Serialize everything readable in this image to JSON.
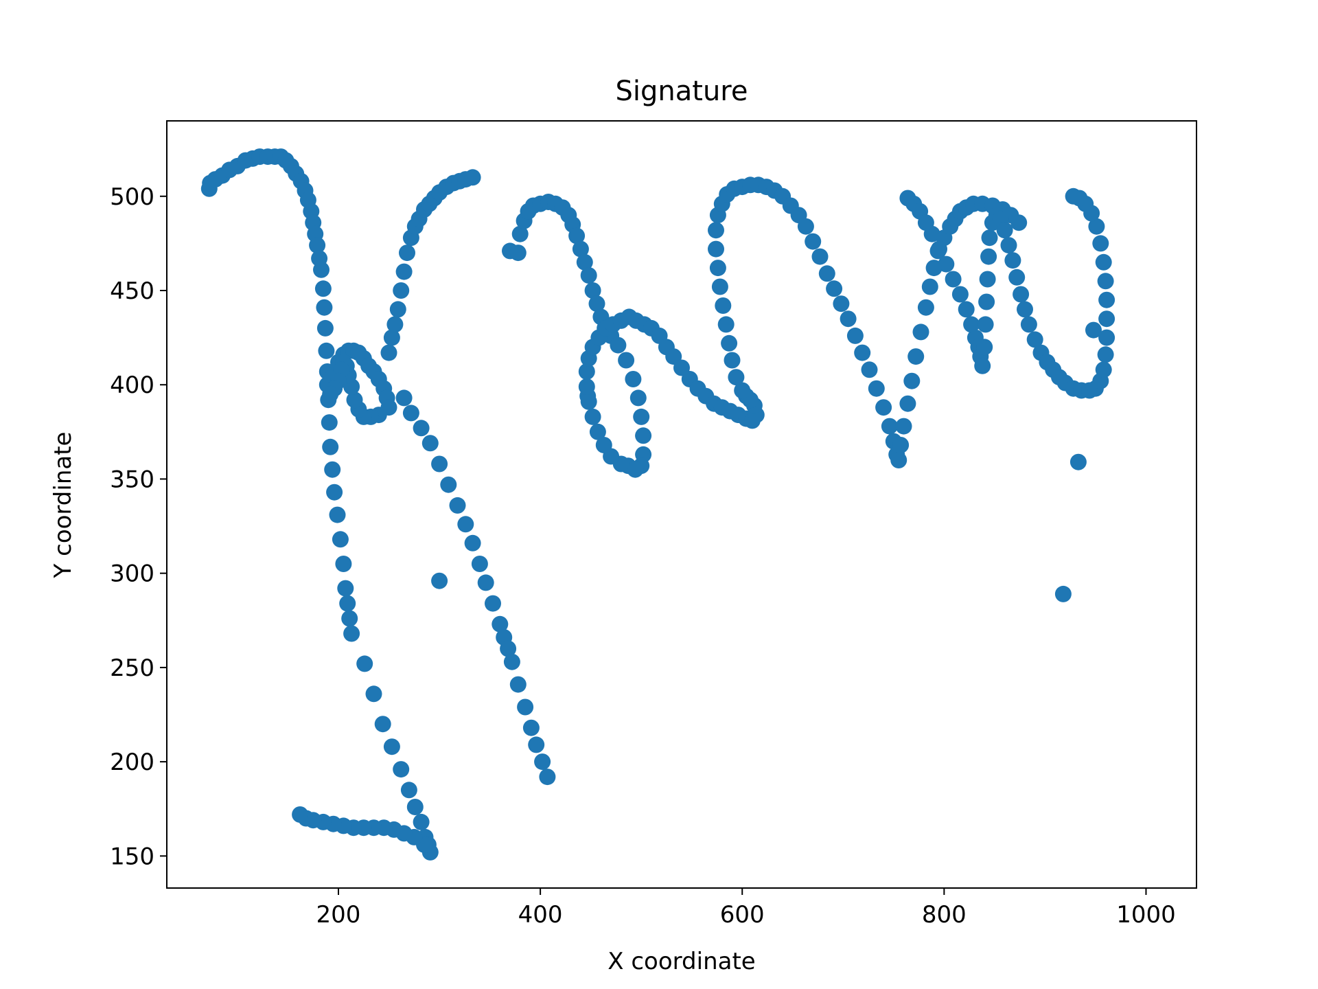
{
  "chart_data": {
    "type": "scatter",
    "title": "Signature",
    "xlabel": "X coordinate",
    "ylabel": "Y coordinate",
    "xlim": [
      30,
      1050
    ],
    "ylim": [
      133,
      540
    ],
    "xticks": [
      200,
      400,
      600,
      800,
      1000
    ],
    "yticks": [
      150,
      200,
      250,
      300,
      350,
      400,
      450,
      500
    ],
    "grid": false,
    "color": "#1f77b4",
    "series": [
      {
        "points": [
          [
            72,
            504
          ],
          [
            73,
            507
          ],
          [
            78,
            509
          ],
          [
            85,
            511
          ],
          [
            92,
            514
          ],
          [
            100,
            516
          ],
          [
            108,
            519
          ],
          [
            115,
            520
          ],
          [
            122,
            521
          ],
          [
            130,
            521
          ],
          [
            137,
            521
          ],
          [
            143,
            521
          ],
          [
            148,
            519
          ],
          [
            153,
            516
          ],
          [
            158,
            512
          ],
          [
            163,
            508
          ],
          [
            167,
            503
          ],
          [
            170,
            498
          ],
          [
            173,
            492
          ],
          [
            175,
            486
          ],
          [
            177,
            480
          ],
          [
            179,
            474
          ],
          [
            181,
            467
          ],
          [
            183,
            461
          ],
          [
            185,
            451
          ],
          [
            186,
            441
          ],
          [
            187,
            430
          ],
          [
            188,
            418
          ],
          [
            189,
            407
          ],
          [
            189,
            400
          ],
          [
            190,
            392
          ],
          [
            191,
            380
          ],
          [
            192,
            367
          ],
          [
            194,
            355
          ],
          [
            196,
            343
          ],
          [
            199,
            331
          ],
          [
            202,
            318
          ],
          [
            205,
            305
          ],
          [
            207,
            292
          ],
          [
            209,
            284
          ],
          [
            211,
            276
          ],
          [
            213,
            268
          ],
          [
            226,
            252
          ],
          [
            235,
            236
          ],
          [
            244,
            220
          ],
          [
            253,
            208
          ],
          [
            262,
            196
          ],
          [
            270,
            185
          ],
          [
            276,
            176
          ],
          [
            282,
            168
          ],
          [
            286,
            160
          ],
          [
            289,
            156
          ],
          [
            291,
            152
          ],
          [
            285,
            156
          ],
          [
            275,
            160
          ],
          [
            265,
            162
          ],
          [
            255,
            164
          ],
          [
            245,
            165
          ],
          [
            235,
            165
          ],
          [
            225,
            165
          ],
          [
            215,
            165
          ],
          [
            205,
            166
          ],
          [
            195,
            167
          ],
          [
            185,
            168
          ],
          [
            175,
            169
          ],
          [
            168,
            170
          ],
          [
            162,
            172
          ]
        ]
      },
      {
        "points": [
          [
            195,
            405
          ],
          [
            200,
            412
          ],
          [
            205,
            416
          ],
          [
            210,
            418
          ],
          [
            215,
            418
          ],
          [
            220,
            417
          ],
          [
            225,
            414
          ],
          [
            230,
            410
          ],
          [
            235,
            407
          ],
          [
            240,
            403
          ],
          [
            245,
            398
          ],
          [
            248,
            393
          ],
          [
            250,
            388
          ],
          [
            240,
            384
          ],
          [
            232,
            383
          ],
          [
            225,
            383
          ],
          [
            220,
            387
          ],
          [
            216,
            392
          ],
          [
            213,
            399
          ],
          [
            210,
            405
          ],
          [
            208,
            410
          ],
          [
            205,
            412
          ],
          [
            203,
            408
          ],
          [
            200,
            402
          ],
          [
            196,
            398
          ],
          [
            192,
            395
          ]
        ]
      },
      {
        "points": [
          [
            250,
            417
          ],
          [
            253,
            425
          ],
          [
            256,
            432
          ],
          [
            259,
            440
          ],
          [
            262,
            450
          ],
          [
            265,
            460
          ],
          [
            268,
            470
          ],
          [
            272,
            478
          ],
          [
            276,
            484
          ],
          [
            280,
            488
          ],
          [
            285,
            493
          ],
          [
            290,
            496
          ],
          [
            295,
            499
          ],
          [
            300,
            502
          ],
          [
            307,
            505
          ],
          [
            314,
            507
          ],
          [
            320,
            508
          ],
          [
            326,
            509
          ],
          [
            333,
            510
          ]
        ]
      },
      {
        "points": [
          [
            265,
            393
          ],
          [
            272,
            385
          ],
          [
            282,
            377
          ],
          [
            291,
            369
          ],
          [
            300,
            358
          ],
          [
            309,
            347
          ],
          [
            318,
            336
          ],
          [
            326,
            326
          ],
          [
            333,
            316
          ],
          [
            340,
            305
          ],
          [
            346,
            295
          ],
          [
            353,
            284
          ],
          [
            360,
            273
          ],
          [
            364,
            266
          ],
          [
            368,
            260
          ],
          [
            372,
            253
          ],
          [
            378,
            241
          ],
          [
            385,
            229
          ],
          [
            391,
            218
          ],
          [
            396,
            209
          ],
          [
            402,
            200
          ],
          [
            407,
            192
          ]
        ]
      },
      {
        "points": [
          [
            370,
            471
          ],
          [
            300,
            296
          ],
          [
            447,
            394
          ],
          [
            933,
            359
          ],
          [
            918,
            289
          ],
          [
            948,
            429
          ]
        ]
      },
      {
        "points": [
          [
            378,
            470
          ],
          [
            380,
            480
          ],
          [
            384,
            487
          ],
          [
            388,
            492
          ],
          [
            393,
            495
          ],
          [
            400,
            496
          ],
          [
            408,
            497
          ],
          [
            415,
            496
          ],
          [
            422,
            494
          ],
          [
            428,
            490
          ],
          [
            432,
            485
          ],
          [
            436,
            479
          ],
          [
            440,
            472
          ],
          [
            444,
            465
          ],
          [
            448,
            458
          ],
          [
            452,
            450
          ],
          [
            456,
            443
          ],
          [
            460,
            436
          ],
          [
            464,
            430
          ],
          [
            470,
            426
          ],
          [
            477,
            421
          ],
          [
            485,
            413
          ],
          [
            492,
            403
          ],
          [
            497,
            393
          ],
          [
            500,
            383
          ],
          [
            502,
            373
          ],
          [
            502,
            363
          ],
          [
            500,
            357
          ],
          [
            494,
            355
          ],
          [
            487,
            357
          ],
          [
            480,
            358
          ],
          [
            470,
            362
          ],
          [
            463,
            368
          ],
          [
            457,
            375
          ],
          [
            452,
            383
          ],
          [
            448,
            391
          ],
          [
            446,
            399
          ],
          [
            446,
            407
          ],
          [
            448,
            414
          ],
          [
            452,
            420
          ],
          [
            458,
            425
          ],
          [
            465,
            430
          ],
          [
            472,
            432
          ],
          [
            480,
            434
          ],
          [
            488,
            436
          ],
          [
            495,
            434
          ],
          [
            503,
            432
          ],
          [
            510,
            430
          ],
          [
            518,
            426
          ],
          [
            525,
            420
          ],
          [
            532,
            415
          ],
          [
            540,
            409
          ],
          [
            548,
            403
          ],
          [
            556,
            398
          ],
          [
            564,
            394
          ],
          [
            572,
            390
          ],
          [
            580,
            388
          ],
          [
            588,
            386
          ],
          [
            596,
            384
          ],
          [
            604,
            382
          ],
          [
            610,
            381
          ],
          [
            614,
            384
          ],
          [
            612,
            389
          ],
          [
            608,
            392
          ],
          [
            604,
            394
          ],
          [
            600,
            397
          ],
          [
            594,
            404
          ],
          [
            590,
            413
          ],
          [
            587,
            422
          ],
          [
            584,
            432
          ],
          [
            581,
            442
          ],
          [
            578,
            452
          ],
          [
            576,
            462
          ],
          [
            574,
            472
          ],
          [
            574,
            482
          ],
          [
            576,
            490
          ],
          [
            580,
            496
          ],
          [
            585,
            501
          ],
          [
            592,
            504
          ],
          [
            600,
            505
          ],
          [
            608,
            506
          ],
          [
            616,
            506
          ],
          [
            624,
            505
          ],
          [
            632,
            503
          ],
          [
            640,
            500
          ],
          [
            648,
            495
          ],
          [
            656,
            490
          ],
          [
            663,
            484
          ],
          [
            670,
            476
          ],
          [
            677,
            468
          ],
          [
            684,
            459
          ],
          [
            691,
            451
          ],
          [
            698,
            443
          ],
          [
            705,
            435
          ],
          [
            712,
            426
          ],
          [
            719,
            417
          ],
          [
            726,
            408
          ],
          [
            733,
            398
          ],
          [
            740,
            388
          ],
          [
            746,
            378
          ],
          [
            750,
            370
          ],
          [
            753,
            363
          ],
          [
            755,
            360
          ],
          [
            757,
            368
          ],
          [
            760,
            378
          ],
          [
            764,
            390
          ],
          [
            768,
            402
          ],
          [
            772,
            415
          ],
          [
            777,
            428
          ],
          [
            782,
            441
          ],
          [
            786,
            452
          ],
          [
            790,
            462
          ],
          [
            794,
            471
          ],
          [
            800,
            478
          ],
          [
            806,
            484
          ],
          [
            811,
            488
          ],
          [
            816,
            492
          ],
          [
            822,
            494
          ],
          [
            829,
            496
          ],
          [
            838,
            496
          ],
          [
            848,
            495
          ],
          [
            858,
            493
          ],
          [
            866,
            490
          ],
          [
            874,
            486
          ]
        ]
      },
      {
        "points": [
          [
            764,
            499
          ],
          [
            770,
            496
          ],
          [
            776,
            492
          ],
          [
            782,
            486
          ],
          [
            788,
            480
          ],
          [
            795,
            472
          ],
          [
            802,
            464
          ],
          [
            809,
            456
          ],
          [
            816,
            448
          ],
          [
            822,
            440
          ],
          [
            827,
            432
          ],
          [
            831,
            425
          ],
          [
            834,
            420
          ],
          [
            836,
            415
          ],
          [
            838,
            410
          ],
          [
            840,
            420
          ],
          [
            841,
            432
          ],
          [
            842,
            444
          ],
          [
            843,
            456
          ],
          [
            844,
            468
          ],
          [
            845,
            478
          ],
          [
            848,
            486
          ],
          [
            852,
            490
          ],
          [
            856,
            488
          ],
          [
            860,
            482
          ],
          [
            864,
            474
          ],
          [
            868,
            466
          ],
          [
            872,
            457
          ],
          [
            876,
            448
          ],
          [
            880,
            440
          ],
          [
            884,
            432
          ],
          [
            890,
            424
          ],
          [
            896,
            417
          ],
          [
            902,
            412
          ],
          [
            908,
            408
          ],
          [
            914,
            404
          ],
          [
            920,
            401
          ],
          [
            928,
            398
          ],
          [
            936,
            397
          ],
          [
            944,
            397
          ],
          [
            950,
            398
          ],
          [
            955,
            402
          ],
          [
            958,
            408
          ],
          [
            960,
            416
          ],
          [
            961,
            425
          ],
          [
            961,
            435
          ],
          [
            961,
            445
          ],
          [
            960,
            455
          ],
          [
            958,
            465
          ],
          [
            955,
            475
          ],
          [
            951,
            484
          ],
          [
            946,
            491
          ],
          [
            940,
            496
          ],
          [
            934,
            499
          ],
          [
            928,
            500
          ]
        ]
      }
    ]
  }
}
